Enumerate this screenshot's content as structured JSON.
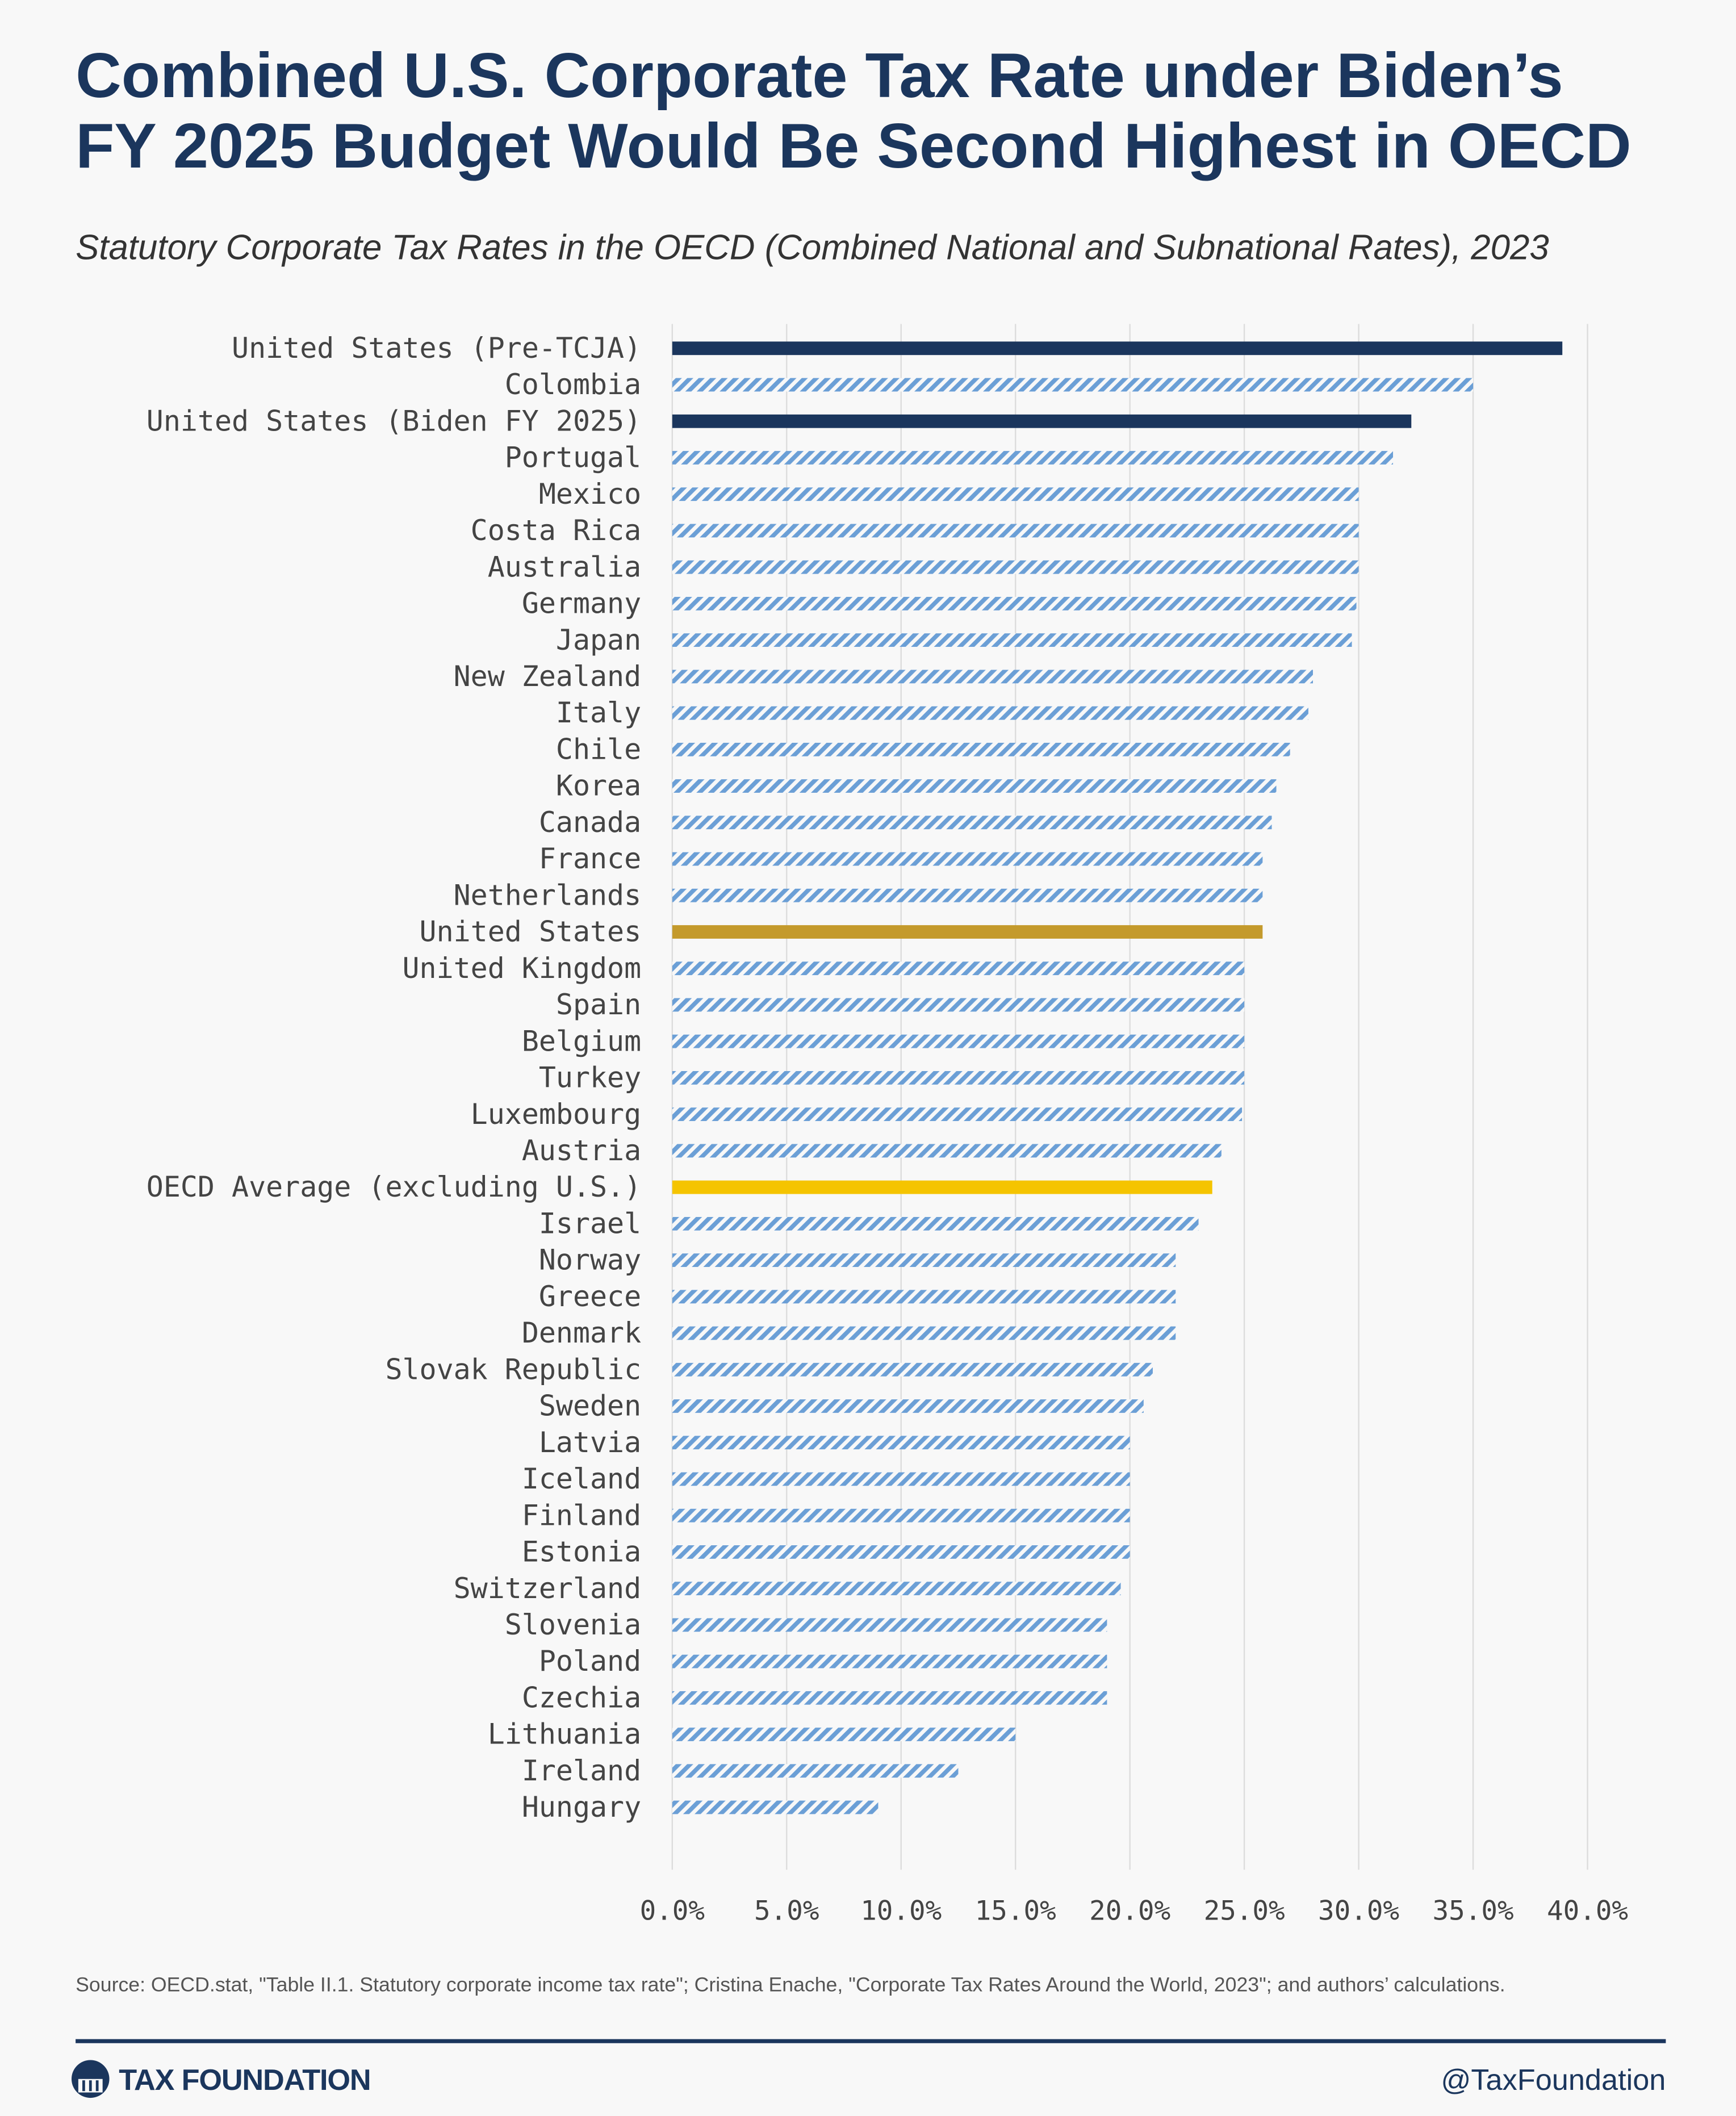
{
  "chart_data": {
    "type": "hbar",
    "title": [
      "Combined U.S. Corporate Tax Rate under Biden’s",
      "FY 2025 Budget Would Be Second Highest in OECD"
    ],
    "subtitle": "Statutory Corporate Tax Rates in the OECD (Combined National and Subnational Rates), 2023",
    "categories": [
      "United States (Pre-TCJA)",
      "Colombia",
      "United States (Biden FY 2025)",
      "Portugal",
      "Mexico",
      "Costa Rica",
      "Australia",
      "Germany",
      "Japan",
      "New Zealand",
      "Italy",
      "Chile",
      "Korea",
      "Canada",
      "France",
      "Netherlands",
      "United States",
      "United Kingdom",
      "Spain",
      "Belgium",
      "Turkey",
      "Luxembourg",
      "Austria",
      "OECD Average (excluding U.S.)",
      "Israel",
      "Norway",
      "Greece",
      "Denmark",
      "Slovak Republic",
      "Sweden",
      "Latvia",
      "Iceland",
      "Finland",
      "Estonia",
      "Switzerland",
      "Slovenia",
      "Poland",
      "Czechia",
      "Lithuania",
      "Ireland",
      "Hungary"
    ],
    "values": [
      38.9,
      35,
      32.3,
      31.5,
      30,
      30,
      30,
      29.9,
      29.7,
      28,
      27.8,
      27,
      26.4,
      26.2,
      25.8,
      25.8,
      25.8,
      25,
      25,
      25,
      25,
      24.9,
      24,
      23.6,
      23,
      22,
      22,
      22,
      21,
      20.6,
      20,
      20,
      20,
      20,
      19.6,
      19,
      19,
      19,
      15,
      12.5,
      9
    ],
    "colors": [
      "#1b365d",
      "#6b9fd6",
      "#1b365d",
      "#6b9fd6",
      "#6b9fd6",
      "#6b9fd6",
      "#6b9fd6",
      "#6b9fd6",
      "#6b9fd6",
      "#6b9fd6",
      "#6b9fd6",
      "#6b9fd6",
      "#6b9fd6",
      "#6b9fd6",
      "#6b9fd6",
      "#6b9fd6",
      "#c49a2c",
      "#6b9fd6",
      "#6b9fd6",
      "#6b9fd6",
      "#6b9fd6",
      "#6b9fd6",
      "#6b9fd6",
      "#f5c400",
      "#6b9fd6",
      "#6b9fd6",
      "#6b9fd6",
      "#6b9fd6",
      "#6b9fd6",
      "#6b9fd6",
      "#6b9fd6",
      "#6b9fd6",
      "#6b9fd6",
      "#6b9fd6",
      "#6b9fd6",
      "#6b9fd6",
      "#6b9fd6",
      "#6b9fd6",
      "#6b9fd6",
      "#6b9fd6",
      "#6b9fd6"
    ],
    "hatched": [
      false,
      true,
      false,
      true,
      true,
      true,
      true,
      true,
      true,
      true,
      true,
      true,
      true,
      true,
      true,
      true,
      false,
      true,
      true,
      true,
      true,
      true,
      true,
      false,
      true,
      true,
      true,
      true,
      true,
      true,
      true,
      true,
      true,
      true,
      true,
      true,
      true,
      true,
      true,
      true,
      true
    ],
    "xlim": [
      0,
      40
    ],
    "xticks": [
      {
        "value": 0,
        "label": "0.0%"
      },
      {
        "value": 5,
        "label": "5.0%"
      },
      {
        "value": 10,
        "label": "10.0%"
      },
      {
        "value": 15,
        "label": "15.0%"
      },
      {
        "value": 20,
        "label": "20.0%"
      },
      {
        "value": 25,
        "label": "25.0%"
      },
      {
        "value": 30,
        "label": "30.0%"
      },
      {
        "value": 35,
        "label": "35.0%"
      },
      {
        "value": 40,
        "label": "40.0%"
      }
    ],
    "grid": true
  },
  "footer": {
    "source": "Source:  OECD.stat, \"Table II.1. Statutory corporate income tax rate\"; Cristina Enache, \"Corporate Tax Rates Around the World, 2023\"; and authors’ calculations.",
    "brand": "TAX FOUNDATION",
    "handle": "@TaxFoundation"
  }
}
